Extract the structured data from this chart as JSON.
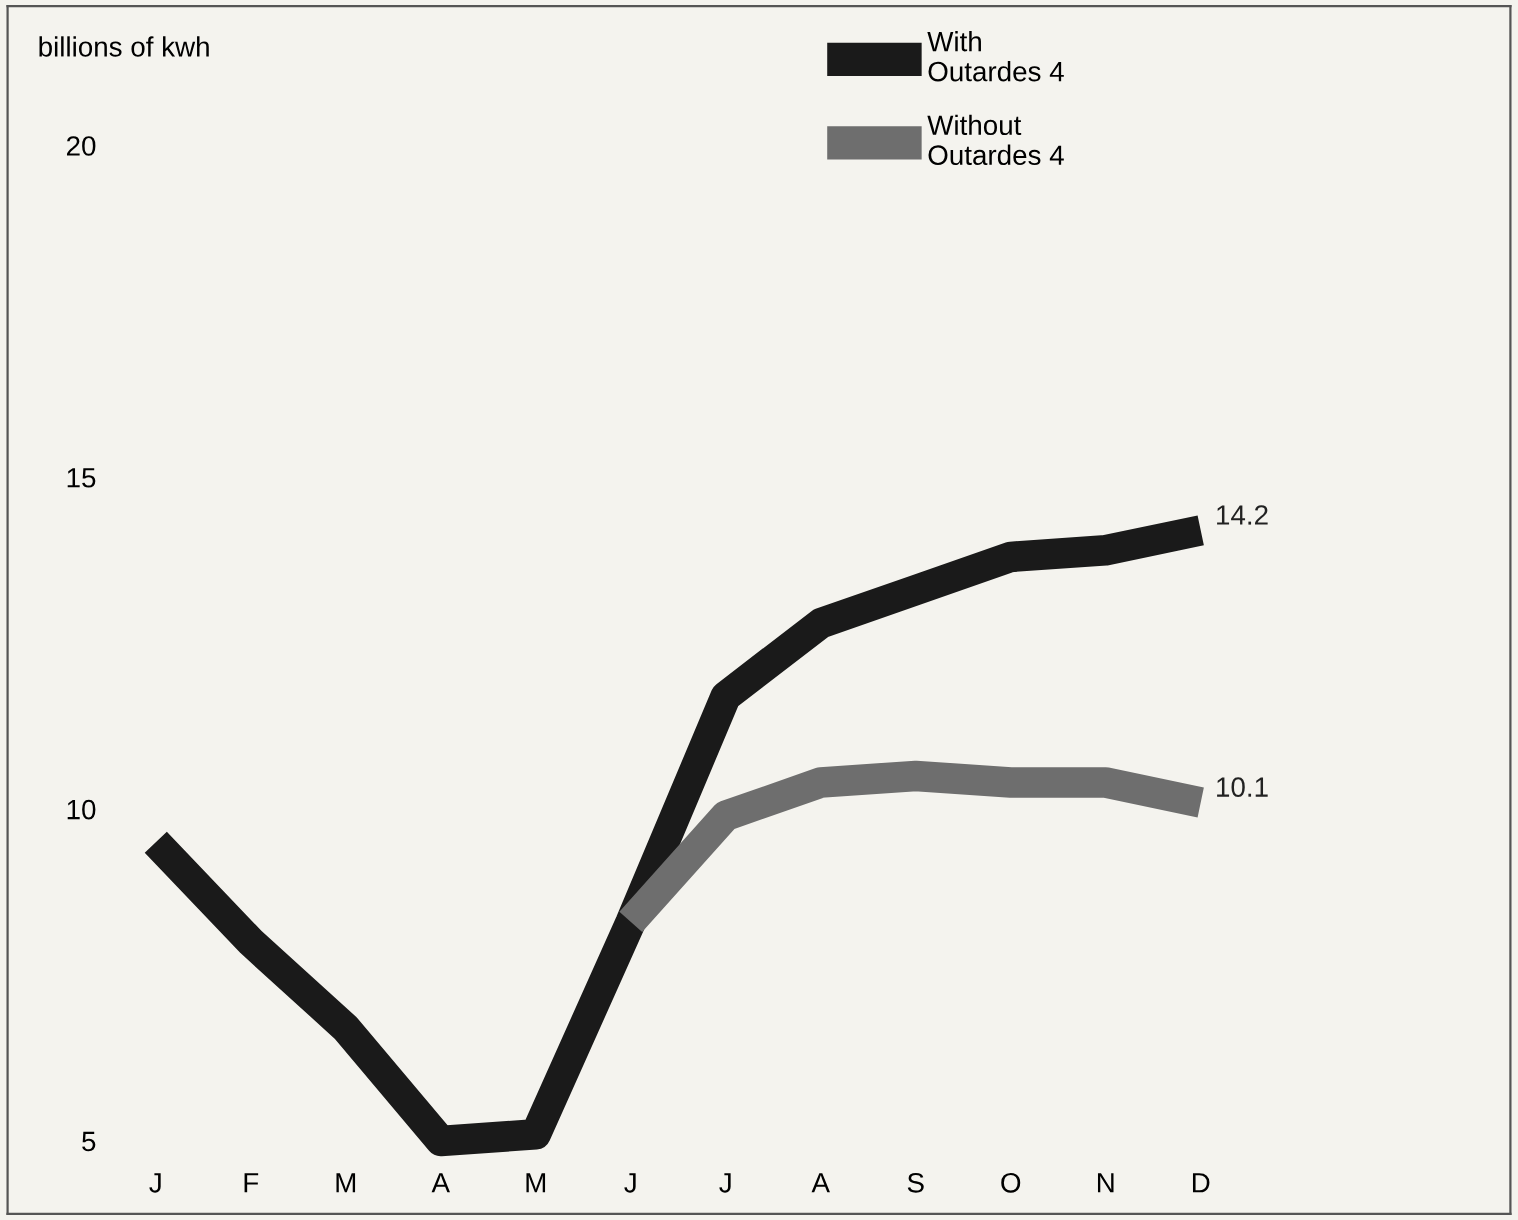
{
  "chart_data": {
    "type": "line",
    "ylabel": "billions of kwh",
    "categories": [
      "J",
      "F",
      "M",
      "A",
      "M",
      "J",
      "J",
      "A",
      "S",
      "O",
      "N",
      "D"
    ],
    "series": [
      {
        "name": "With\nOutardes 4",
        "color": "#1a1a1a",
        "values": [
          9.5,
          8.0,
          6.7,
          5.0,
          5.1,
          8.3,
          11.7,
          12.8,
          13.3,
          13.8,
          13.9,
          14.2
        ],
        "value_labels": [
          null,
          null,
          null,
          null,
          null,
          null,
          null,
          null,
          null,
          null,
          null,
          "14.2"
        ]
      },
      {
        "name": "Without\nOutardes 4",
        "color": "#6e6e6e",
        "values": [
          null,
          null,
          null,
          null,
          null,
          8.3,
          9.9,
          10.4,
          10.5,
          10.4,
          10.4,
          10.1
        ],
        "value_labels": [
          null,
          null,
          null,
          null,
          null,
          null,
          null,
          null,
          null,
          null,
          null,
          "10.1"
        ]
      }
    ],
    "ylim": [
      3.9,
      22.1
    ],
    "yticks": [
      5,
      10,
      15,
      20
    ],
    "grid": false,
    "legend": "top right",
    "marker": "none",
    "line_style": "solid"
  }
}
